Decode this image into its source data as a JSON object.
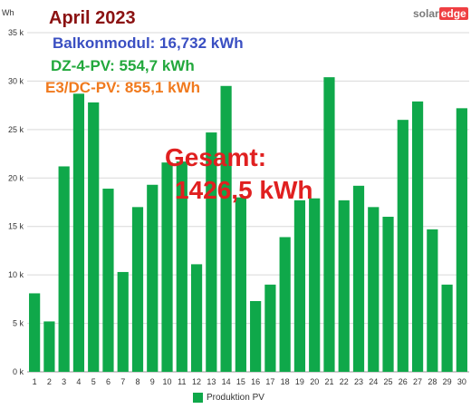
{
  "colors": {
    "bar": "#0fa84a",
    "title": "#8b1212",
    "balkon": "#3a4fc2",
    "dz": "#22a83c",
    "e3": "#f07a1e",
    "total": "#e02020",
    "logo_accent": "#ef3f42"
  },
  "annotations": {
    "title": "April 2023",
    "balkon": "Balkonmodul: 16,732 kWh",
    "dz": "DZ-4-PV: 554,7 kWh",
    "e3": "E3/DC-PV: 855,1 kWh",
    "total_label": "Gesamt:",
    "total_value": "1426,5 kWh"
  },
  "logo": {
    "part_a": "solar",
    "part_b": "edge"
  },
  "chart_data": {
    "type": "bar",
    "unit_label": "Wh",
    "categories": [
      "1",
      "2",
      "3",
      "4",
      "5",
      "6",
      "7",
      "8",
      "9",
      "10",
      "11",
      "12",
      "13",
      "14",
      "15",
      "16",
      "17",
      "18",
      "19",
      "20",
      "21",
      "22",
      "23",
      "24",
      "25",
      "26",
      "27",
      "28",
      "29",
      "30"
    ],
    "series": [
      {
        "name": "Produktion PV",
        "values": [
          8100,
          5200,
          21200,
          28700,
          27800,
          18900,
          10300,
          17000,
          19300,
          21600,
          21700,
          11100,
          24700,
          29500,
          18000,
          7300,
          9000,
          13900,
          17700,
          17900,
          30400,
          17700,
          19200,
          17000,
          16000,
          26000,
          27900,
          14700,
          9000,
          27200
        ]
      }
    ],
    "yticks": [
      {
        "value": 0,
        "label": "0 k"
      },
      {
        "value": 5000,
        "label": "5 k"
      },
      {
        "value": 10000,
        "label": "10 k"
      },
      {
        "value": 15000,
        "label": "15 k"
      },
      {
        "value": 20000,
        "label": "20 k"
      },
      {
        "value": 25000,
        "label": "25 k"
      },
      {
        "value": 30000,
        "label": "30 k"
      },
      {
        "value": 35000,
        "label": "35 k"
      }
    ],
    "ylim": [
      0,
      35000
    ],
    "grid": true,
    "legend_position": "bottom"
  }
}
